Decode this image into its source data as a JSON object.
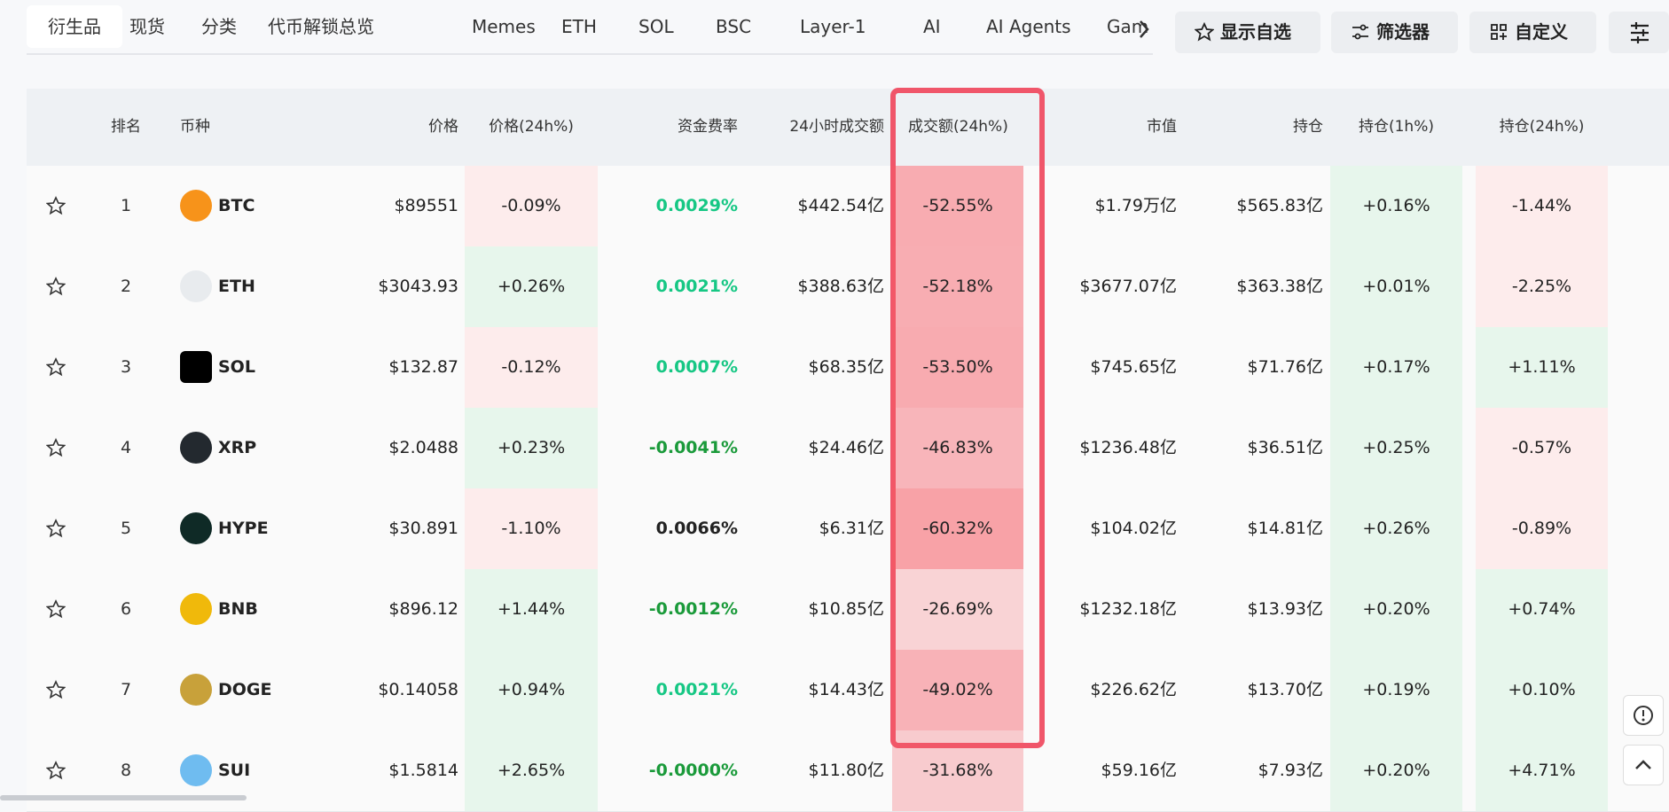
{
  "tabs": [
    "衍生品",
    "现货",
    "分类",
    "代币解锁总览",
    "Memes",
    "ETH",
    "SOL",
    "BSC",
    "Layer-1",
    "AI",
    "AI Agents",
    "Gam"
  ],
  "buttons": [
    "显示自选",
    "筛选器",
    "自定义"
  ],
  "table": {
    "headers": [
      "排名",
      "币种",
      "价格",
      "价格(24h%)",
      "资金费率",
      "24小时成交额",
      "成交额(24h%)",
      "市值",
      "持仓",
      "持仓(1h%)",
      "持仓(24h%)"
    ],
    "rows": [
      [
        "1",
        "BTC",
        "$89551",
        "-0.09%",
        "0.0029%",
        "$442.54亿",
        "-52.55%",
        "$1.79万亿",
        "$565.83亿",
        "+0.16%",
        "-1.44%"
      ],
      [
        "2",
        "ETH",
        "$3043.93",
        "+0.26%",
        "0.0021%",
        "$388.63亿",
        "-52.18%",
        "$3677.07亿",
        "$363.38亿",
        "+0.01%",
        "-2.25%"
      ],
      [
        "3",
        "SOL",
        "$132.87",
        "-0.12%",
        "0.0007%",
        "$68.35亿",
        "-53.50%",
        "$745.65亿",
        "$71.76亿",
        "+0.17%",
        "+1.11%"
      ],
      [
        "4",
        "XRP",
        "$2.0488",
        "+0.23%",
        "-0.0041%",
        "$24.46亿",
        "-46.83%",
        "$1236.48亿",
        "$36.51亿",
        "+0.25%",
        "-0.57%"
      ],
      [
        "5",
        "HYPE",
        "$30.891",
        "-1.10%",
        "0.0066%",
        "$6.31亿",
        "-60.32%",
        "$104.02亿",
        "$14.81亿",
        "+0.26%",
        "-0.89%"
      ],
      [
        "6",
        "BNB",
        "$896.12",
        "+1.44%",
        "-0.0012%",
        "$10.85亿",
        "-26.69%",
        "$1232.18亿",
        "$13.93亿",
        "+0.20%",
        "+0.74%"
      ],
      [
        "7",
        "DOGE",
        "$0.14058",
        "+0.94%",
        "0.0021%",
        "$14.43亿",
        "-49.02%",
        "$226.62亿",
        "$13.70亿",
        "+0.19%",
        "+0.10%"
      ],
      [
        "8",
        "SUI",
        "$1.5814",
        "+2.65%",
        "-0.0000%",
        "$11.80亿",
        "-31.68%",
        "$59.16亿",
        "$7.93亿",
        "+0.20%",
        "+4.71%"
      ]
    ],
    "funding_colors": [
      "#16c784",
      "#16c784",
      "#16c784",
      "#1a9a3a",
      "#222222",
      "#1a9a3a",
      "#16c784",
      "#1a9a3a"
    ],
    "icon_colors": [
      "#f7931a",
      "#e8ebee",
      "#000000",
      "#23292f",
      "#0f2a26",
      "#f0b90b",
      "#c8a13a",
      "#6fbcf0"
    ]
  }
}
